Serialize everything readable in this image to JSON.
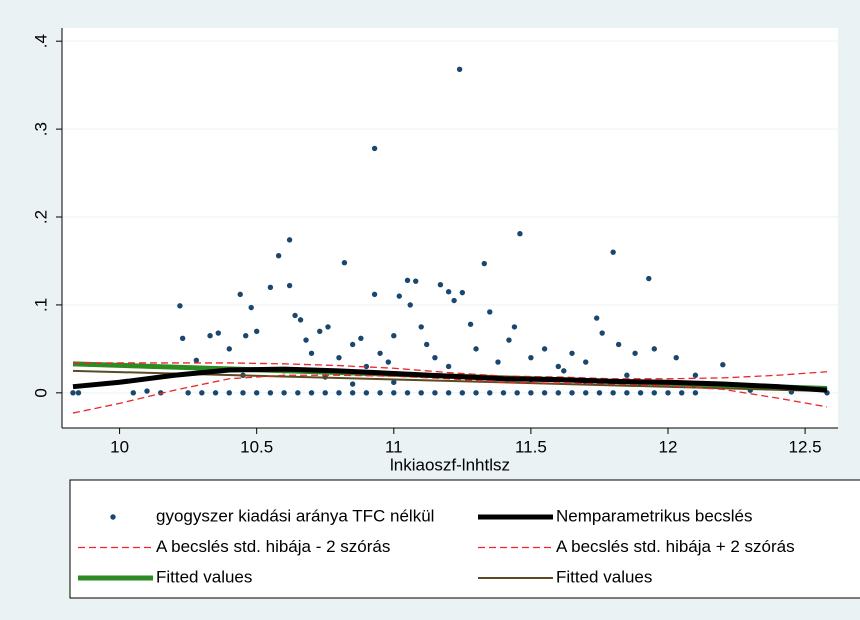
{
  "chart_data": {
    "type": "scatter",
    "x_label": "lnkiaoszf-lnhtlsz",
    "xlim": [
      9.79,
      12.62
    ],
    "ylim": [
      -0.04,
      0.415
    ],
    "xticks": [
      10,
      10.5,
      11,
      11.5,
      12,
      12.5
    ],
    "yticks": [
      {
        "value": 0,
        "label": "0"
      },
      {
        "value": 0.1,
        "label": ".1"
      },
      {
        "value": 0.2,
        "label": ".2"
      },
      {
        "value": 0.3,
        "label": ".3"
      },
      {
        "value": 0.4,
        "label": ".4"
      }
    ],
    "grid": true,
    "series": [
      {
        "name": "gyogyszer kiadási aránya TFC nélkül",
        "kind": "scatter",
        "color": "#1a476f",
        "x": [
          9.83,
          9.85,
          10.05,
          10.15,
          10.25,
          10.3,
          10.35,
          10.4,
          10.45,
          10.5,
          10.55,
          10.6,
          10.65,
          10.7,
          10.75,
          10.8,
          10.85,
          10.9,
          10.95,
          11.0,
          11.05,
          11.1,
          11.15,
          11.2,
          11.25,
          11.3,
          11.35,
          11.4,
          11.45,
          11.5,
          11.55,
          11.6,
          11.65,
          11.7,
          11.75,
          11.8,
          11.85,
          11.9,
          11.95,
          12.0,
          12.05,
          12.1,
          12.58,
          10.22,
          10.23,
          10.28,
          10.33,
          10.36,
          10.4,
          10.44,
          10.46,
          10.48,
          10.5,
          10.55,
          10.58,
          10.62,
          10.62,
          10.64,
          10.66,
          10.68,
          10.7,
          10.73,
          10.76,
          10.8,
          10.82,
          10.85,
          10.88,
          10.9,
          10.93,
          10.93,
          10.95,
          10.98,
          11.0,
          11.02,
          11.05,
          11.06,
          11.08,
          11.1,
          11.12,
          11.15,
          11.17,
          11.2,
          11.22,
          11.24,
          11.25,
          11.28,
          11.3,
          11.33,
          11.35,
          11.38,
          11.42,
          11.44,
          11.46,
          11.5,
          11.55,
          11.6,
          11.62,
          11.65,
          11.7,
          11.74,
          11.76,
          11.8,
          11.82,
          11.85,
          11.88,
          11.93,
          11.95,
          12.03,
          12.1,
          12.2,
          10.45,
          10.6,
          10.75,
          10.9,
          11.1,
          11.3,
          11.5,
          11.7,
          11.9,
          12.3,
          12.45,
          10.1,
          11.0,
          11.2,
          10.85
        ],
        "y": [
          0,
          0,
          0,
          0,
          0,
          0,
          0,
          0,
          0,
          0,
          0,
          0,
          0,
          0,
          0,
          0,
          0,
          0,
          0,
          0,
          0,
          0,
          0,
          0,
          0,
          0,
          0,
          0,
          0,
          0,
          0,
          0,
          0,
          0,
          0,
          0,
          0,
          0,
          0,
          0,
          0,
          0,
          0,
          0.099,
          0.062,
          0.037,
          0.065,
          0.068,
          0.05,
          0.112,
          0.065,
          0.097,
          0.07,
          0.12,
          0.156,
          0.174,
          0.122,
          0.088,
          0.083,
          0.06,
          0.045,
          0.07,
          0.075,
          0.04,
          0.148,
          0.055,
          0.062,
          0.03,
          0.278,
          0.112,
          0.045,
          0.035,
          0.065,
          0.11,
          0.128,
          0.1,
          0.127,
          0.075,
          0.055,
          0.04,
          0.123,
          0.115,
          0.105,
          0.368,
          0.114,
          0.078,
          0.05,
          0.147,
          0.092,
          0.035,
          0.06,
          0.075,
          0.181,
          0.04,
          0.05,
          0.03,
          0.025,
          0.045,
          0.035,
          0.085,
          0.068,
          0.16,
          0.055,
          0.02,
          0.045,
          0.13,
          0.05,
          0.04,
          0.02,
          0.032,
          0.02,
          0.025,
          0.018,
          0.022,
          0.02,
          0.018,
          0.015,
          0.012,
          0.01,
          0.003,
          0.001,
          0.002,
          0.012,
          0.03,
          0.01
        ]
      },
      {
        "name": "Nemparametrikus becslés",
        "kind": "line",
        "color": "#000000",
        "width": 5,
        "dash": false,
        "x": [
          9.83,
          10.0,
          10.2,
          10.4,
          10.6,
          10.8,
          11.0,
          11.2,
          11.4,
          11.6,
          11.8,
          12.0,
          12.2,
          12.4,
          12.58
        ],
        "y": [
          0.007,
          0.012,
          0.02,
          0.026,
          0.027,
          0.025,
          0.022,
          0.019,
          0.016,
          0.015,
          0.013,
          0.012,
          0.01,
          0.007,
          0.003
        ]
      },
      {
        "name": "A becslés std. hibája - 2 szórás",
        "kind": "line",
        "color": "#e8262b",
        "width": 1.3,
        "dash": true,
        "x": [
          9.83,
          10.0,
          10.2,
          10.4,
          10.6,
          10.8,
          11.0,
          11.2,
          11.4,
          11.6,
          11.8,
          12.0,
          12.2,
          12.4,
          12.58
        ],
        "y": [
          -0.023,
          -0.012,
          0.003,
          0.016,
          0.02,
          0.02,
          0.019,
          0.016,
          0.012,
          0.011,
          0.01,
          0.008,
          0.004,
          -0.006,
          -0.016
        ]
      },
      {
        "name": "A becslés std. hibája + 2 szórás",
        "kind": "line",
        "color": "#e8262b",
        "width": 1.3,
        "dash": true,
        "x": [
          9.83,
          10.0,
          10.2,
          10.4,
          10.6,
          10.8,
          11.0,
          11.2,
          11.4,
          11.6,
          11.8,
          12.0,
          12.2,
          12.4,
          12.58
        ],
        "y": [
          0.034,
          0.034,
          0.034,
          0.034,
          0.033,
          0.031,
          0.028,
          0.023,
          0.019,
          0.018,
          0.016,
          0.016,
          0.017,
          0.02,
          0.024
        ]
      },
      {
        "name": "Fitted values",
        "kind": "line",
        "color": "#2e8b22",
        "width": 5,
        "dash": false,
        "x": [
          9.83,
          12.58
        ],
        "y": [
          0.033,
          0.005
        ]
      },
      {
        "name": "Fitted values",
        "kind": "line",
        "color": "#5b4a22",
        "width": 2,
        "dash": false,
        "x": [
          9.83,
          12.58
        ],
        "y": [
          0.025,
          0.002
        ]
      }
    ]
  }
}
